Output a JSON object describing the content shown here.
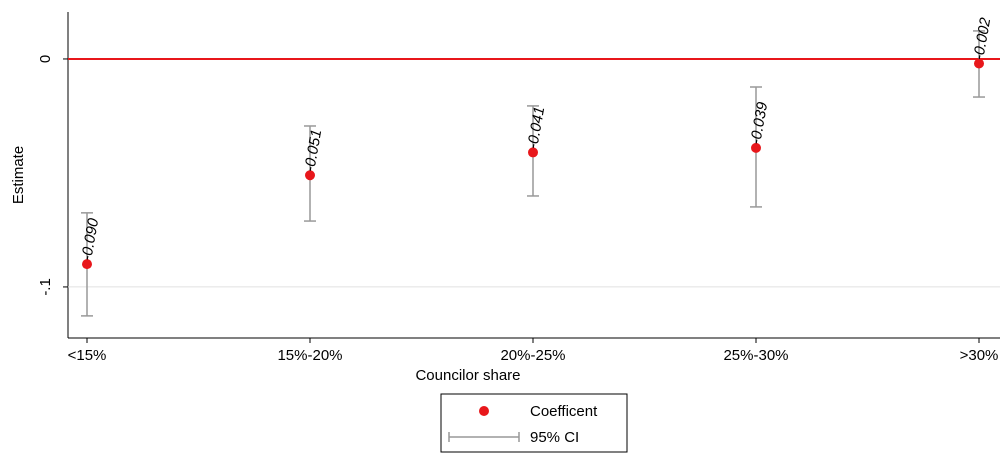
{
  "chart_data": {
    "type": "errorbar",
    "x_label": "Councilor share",
    "y_label": "Estimate",
    "categories": [
      "<15%",
      "15%-20%",
      "20%-25%",
      "25%-30%",
      ">30%"
    ],
    "series": [
      {
        "name": "Coefficent",
        "color": "#e8171b",
        "values": [
          -0.09,
          -0.051,
          -0.041,
          -0.039,
          -0.002
        ],
        "value_labels": [
          "-0.090",
          "-0.051",
          "-0.041",
          "-0.039",
          "-0.002"
        ]
      }
    ],
    "ci": {
      "name": "95% CI",
      "color": "#999999",
      "lower": [
        -0.1127,
        -0.0711,
        -0.0601,
        -0.0649,
        -0.0167
      ],
      "upper": [
        -0.0675,
        -0.0294,
        -0.0206,
        -0.0123,
        0.0123
      ]
    },
    "reference_line": 0,
    "reference_color": "#e8171b",
    "ylim": [
      -0.1224,
      0.0206
    ],
    "yticks": [
      {
        "value": -0.1,
        "label": "-.1"
      },
      0
    ],
    "grid": true
  }
}
